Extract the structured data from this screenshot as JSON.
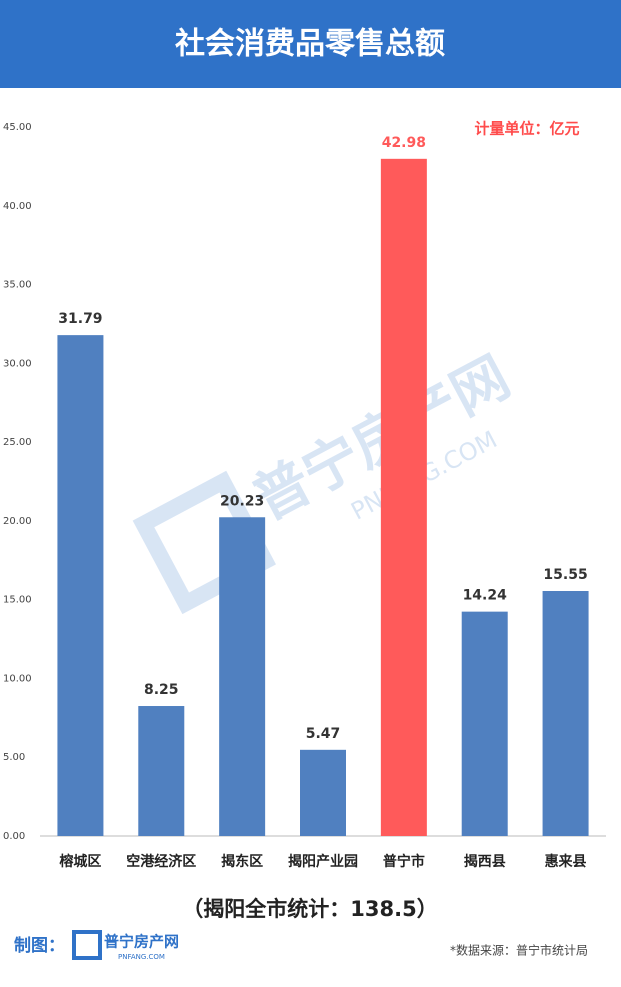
{
  "chart_data": {
    "type": "bar",
    "title": "社会消费品零售总额",
    "unit_note": "计量单位：亿元",
    "total_note": "（揭阳全市统计：138.5）",
    "credit_label": "制图：",
    "logo_text": "普宁房产网",
    "logo_subtext": "PNFANG.COM",
    "source": "*数据来源：普宁市统计局",
    "categories": [
      "榕城区",
      "空港经济区",
      "揭东区",
      "揭阳产业园",
      "普宁市",
      "揭西县",
      "惠来县"
    ],
    "values": [
      31.79,
      8.25,
      20.23,
      5.47,
      42.98,
      14.24,
      15.55
    ],
    "colors": [
      "#5080c0",
      "#5080c0",
      "#5080c0",
      "#5080c0",
      "#ff5a5a",
      "#5080c0",
      "#5080c0"
    ],
    "value_label_colors": [
      "#333333",
      "#333333",
      "#333333",
      "#333333",
      "#ff5a5a",
      "#333333",
      "#333333"
    ],
    "ylim": [
      0,
      45
    ],
    "yticks": [
      {
        "value": 0,
        "label": "0.00"
      },
      {
        "value": 5,
        "label": "5.00"
      },
      {
        "value": 10,
        "label": "10.00"
      },
      {
        "value": 15,
        "label": "15.00"
      },
      {
        "value": 20,
        "label": "20.00"
      },
      {
        "value": 25,
        "label": "25.00"
      },
      {
        "value": 30,
        "label": "30.00"
      },
      {
        "value": 35,
        "label": "35.00"
      },
      {
        "value": 40,
        "label": "40.00"
      },
      {
        "value": 45,
        "label": "45.00"
      }
    ],
    "grid": false
  }
}
